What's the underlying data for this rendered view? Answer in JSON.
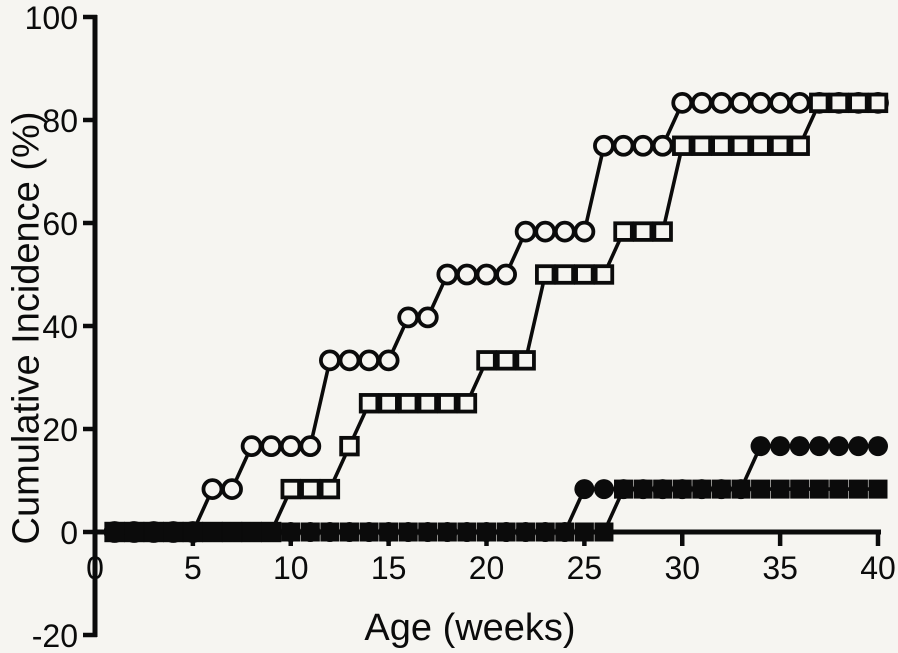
{
  "page": {
    "background": "#f6f5f1",
    "ink": "#0b0b0b"
  },
  "chart_data": {
    "type": "line",
    "title": "",
    "xlabel": "Age (weeks)",
    "ylabel": "Cumulative Incidence (%)",
    "xlim": [
      0,
      40
    ],
    "ylim": [
      -20,
      100
    ],
    "xticks": [
      0,
      5,
      10,
      15,
      20,
      25,
      30,
      35,
      40
    ],
    "yticks": [
      100,
      80,
      60,
      40,
      20,
      0,
      -20
    ],
    "grid": false,
    "legend": false,
    "step_increment_pct": 8.33,
    "colors": {
      "ink": "#0b0b0b",
      "open_marker_fill": "#f6f5f1"
    },
    "weeks": [
      1,
      2,
      3,
      4,
      5,
      6,
      7,
      8,
      9,
      10,
      11,
      12,
      13,
      14,
      15,
      16,
      17,
      18,
      19,
      20,
      21,
      22,
      23,
      24,
      25,
      26,
      27,
      28,
      29,
      30,
      31,
      32,
      33,
      34,
      35,
      36,
      37,
      38,
      39,
      40
    ],
    "series": [
      {
        "name": "open-circles",
        "marker": "circle",
        "fill": "open",
        "incidence_pct": [
          0,
          0,
          0,
          0,
          0,
          8.33,
          8.33,
          16.67,
          16.67,
          16.67,
          16.67,
          33.33,
          33.33,
          33.33,
          33.33,
          41.67,
          41.67,
          50,
          50,
          50,
          50,
          58.33,
          58.33,
          58.33,
          58.33,
          75,
          75,
          75,
          75,
          83.33,
          83.33,
          83.33,
          83.33,
          83.33,
          83.33,
          83.33,
          83.33,
          83.33,
          83.33,
          83.33
        ]
      },
      {
        "name": "open-squares",
        "marker": "square",
        "fill": "open",
        "incidence_pct": [
          0,
          0,
          0,
          0,
          0,
          0,
          0,
          0,
          0,
          8.33,
          8.33,
          8.33,
          16.67,
          25,
          25,
          25,
          25,
          25,
          25,
          33.33,
          33.33,
          33.33,
          50,
          50,
          50,
          50,
          58.33,
          58.33,
          58.33,
          75,
          75,
          75,
          75,
          75,
          75,
          75,
          83.33,
          83.33,
          83.33,
          83.33
        ]
      },
      {
        "name": "filled-circles",
        "marker": "circle",
        "fill": "solid",
        "incidence_pct": [
          0,
          0,
          0,
          0,
          0,
          0,
          0,
          0,
          0,
          0,
          0,
          0,
          0,
          0,
          0,
          0,
          0,
          0,
          0,
          0,
          0,
          0,
          0,
          0,
          8.33,
          8.33,
          8.33,
          8.33,
          8.33,
          8.33,
          8.33,
          8.33,
          8.33,
          16.67,
          16.67,
          16.67,
          16.67,
          16.67,
          16.67,
          16.67
        ]
      },
      {
        "name": "filled-squares",
        "marker": "square",
        "fill": "solid",
        "incidence_pct": [
          0,
          0,
          0,
          0,
          0,
          0,
          0,
          0,
          0,
          0,
          0,
          0,
          0,
          0,
          0,
          0,
          0,
          0,
          0,
          0,
          0,
          0,
          0,
          0,
          0,
          0,
          8.33,
          8.33,
          8.33,
          8.33,
          8.33,
          8.33,
          8.33,
          8.33,
          8.33,
          8.33,
          8.33,
          8.33,
          8.33,
          8.33
        ]
      }
    ]
  }
}
